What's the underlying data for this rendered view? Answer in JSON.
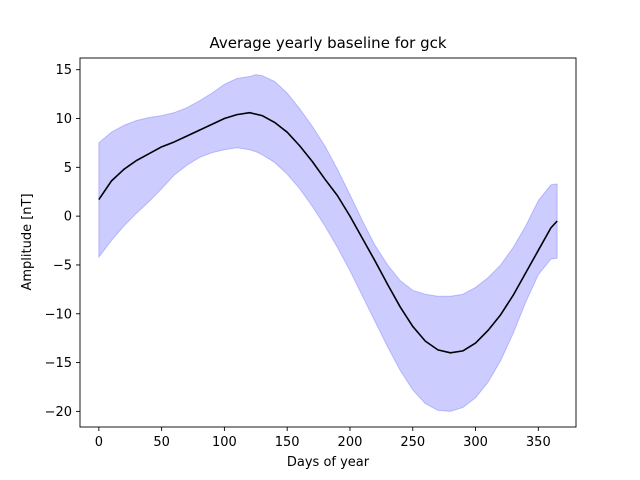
{
  "chart_data": {
    "type": "line",
    "title": "Average yearly baseline for gck",
    "xlabel": "Days of year",
    "ylabel": "Amplitude [nT]",
    "xlim": [
      -15,
      380
    ],
    "ylim": [
      -21.6,
      16.2
    ],
    "xticks": [
      0,
      50,
      100,
      150,
      200,
      250,
      300,
      350
    ],
    "yticks": [
      15,
      10,
      5,
      0,
      -5,
      -10,
      -15,
      -20
    ],
    "ytick_labels": [
      "15",
      "10",
      "5",
      "0",
      "−5",
      "−10",
      "−15",
      "−20"
    ],
    "grid": false,
    "legend": "none",
    "colors": {
      "line": "#000000",
      "band_fill": "#0000ff",
      "band_opacity": 0.2
    },
    "series": [
      {
        "kind": "line",
        "x": [
          0,
          10,
          20,
          30,
          40,
          50,
          60,
          70,
          80,
          90,
          100,
          110,
          120,
          130,
          140,
          150,
          160,
          170,
          180,
          190,
          200,
          210,
          220,
          230,
          240,
          250,
          260,
          270,
          280,
          290,
          300,
          310,
          320,
          330,
          340,
          350,
          360,
          365
        ],
        "y": [
          1.7,
          3.6,
          4.8,
          5.7,
          6.4,
          7.1,
          7.6,
          8.2,
          8.8,
          9.4,
          10.0,
          10.4,
          10.6,
          10.3,
          9.6,
          8.6,
          7.2,
          5.6,
          3.8,
          2.1,
          0.0,
          -2.3,
          -4.6,
          -7.0,
          -9.3,
          -11.3,
          -12.8,
          -13.7,
          -14.0,
          -13.8,
          -13.0,
          -11.7,
          -10.1,
          -8.1,
          -5.8,
          -3.5,
          -1.2,
          -0.5
        ]
      },
      {
        "kind": "band",
        "x": [
          0,
          10,
          20,
          30,
          40,
          50,
          60,
          70,
          80,
          90,
          100,
          110,
          120,
          125,
          130,
          140,
          150,
          160,
          170,
          180,
          190,
          200,
          210,
          220,
          230,
          240,
          250,
          260,
          270,
          280,
          290,
          300,
          310,
          320,
          330,
          340,
          350,
          360,
          365
        ],
        "lower": [
          -4.2,
          -2.5,
          -1.0,
          0.3,
          1.5,
          2.8,
          4.2,
          5.2,
          6.0,
          6.5,
          6.8,
          7.0,
          6.8,
          6.6,
          6.3,
          5.5,
          4.3,
          2.8,
          1.0,
          -1.0,
          -3.2,
          -5.6,
          -8.2,
          -10.8,
          -13.4,
          -15.8,
          -17.8,
          -19.2,
          -19.9,
          -20.0,
          -19.6,
          -18.6,
          -17.0,
          -14.8,
          -12.0,
          -8.8,
          -6.0,
          -4.4,
          -4.3
        ],
        "upper": [
          7.5,
          8.6,
          9.3,
          9.8,
          10.1,
          10.3,
          10.6,
          11.1,
          11.8,
          12.6,
          13.5,
          14.1,
          14.3,
          14.5,
          14.4,
          13.8,
          12.6,
          11.0,
          9.2,
          7.2,
          4.8,
          2.2,
          -0.5,
          -3.0,
          -5.0,
          -6.6,
          -7.6,
          -8.0,
          -8.2,
          -8.2,
          -8.0,
          -7.3,
          -6.3,
          -5.0,
          -3.2,
          -1.0,
          1.6,
          3.2,
          3.3
        ]
      }
    ]
  }
}
